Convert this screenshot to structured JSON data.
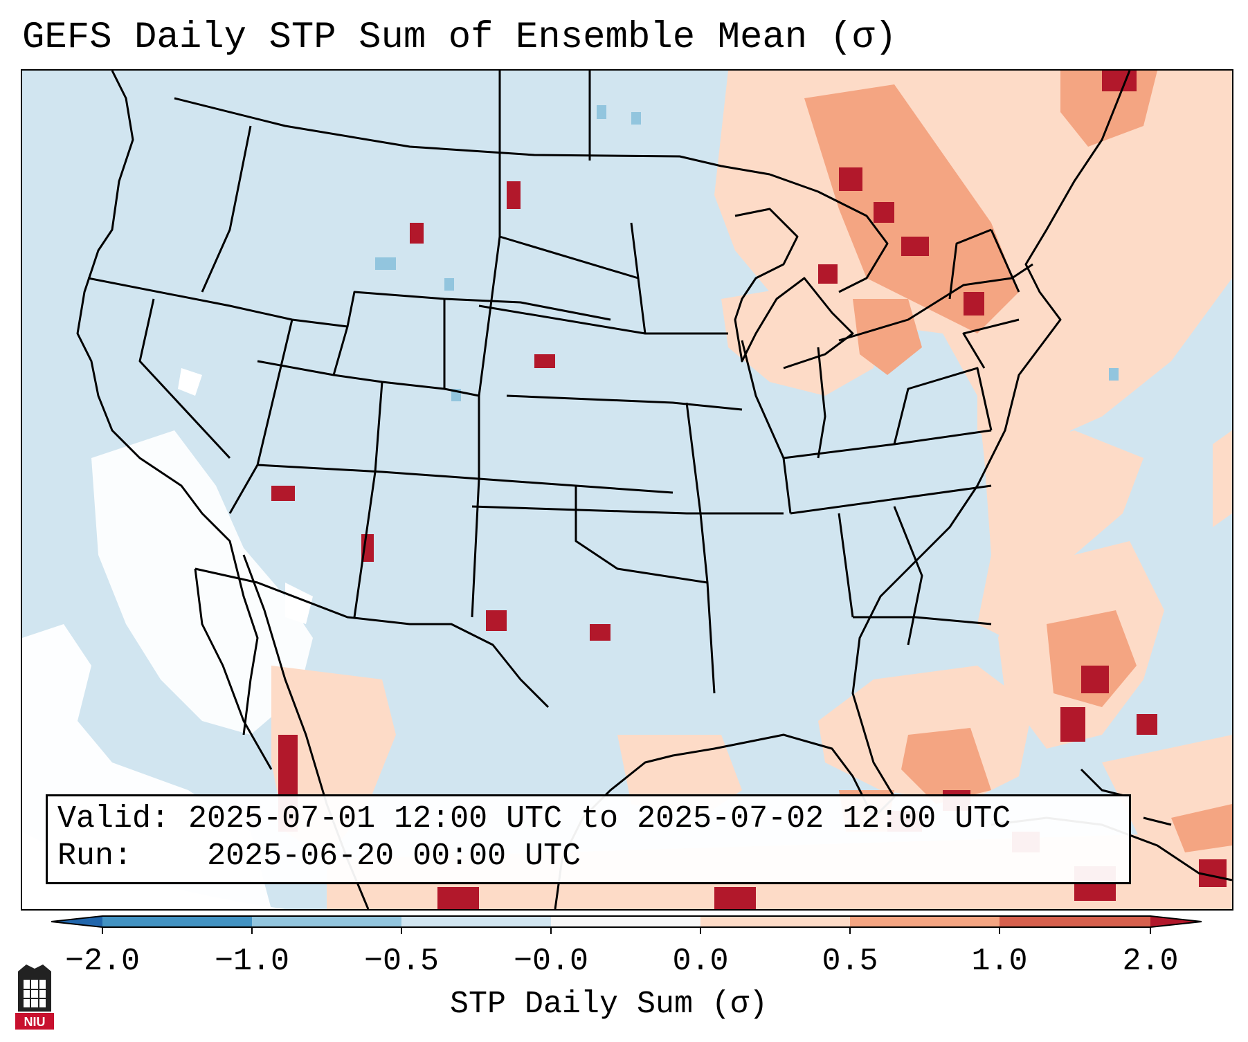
{
  "title": "GEFS Daily STP Sum of Ensemble Mean (σ)",
  "info": {
    "valid_label": "Valid:",
    "valid_text": "2025-07-01 12:00 UTC to 2025-07-02 12:00 UTC",
    "run_label": "Run:",
    "run_text": "2025-06-20 00:00 UTC"
  },
  "colorbar": {
    "label": "STP Daily Sum (σ)",
    "ticks": [
      "−2.0",
      "−1.0",
      "−0.5",
      "−0.0",
      "0.0",
      "0.5",
      "1.0",
      "2.0"
    ],
    "colors": {
      "lt_-2": "#2166ac",
      "-2_-1": "#4393c3",
      "-1_-0.5": "#92c5de",
      "-0.5_0": "#d1e5f0",
      "0_0": "#f7f7f7",
      "0_0.5": "#fddbc7",
      "0.5_1": "#f4a582",
      "1_2": "#d6604d",
      "gt_2": "#b2182b"
    }
  },
  "logo": {
    "text": "NIU"
  }
}
